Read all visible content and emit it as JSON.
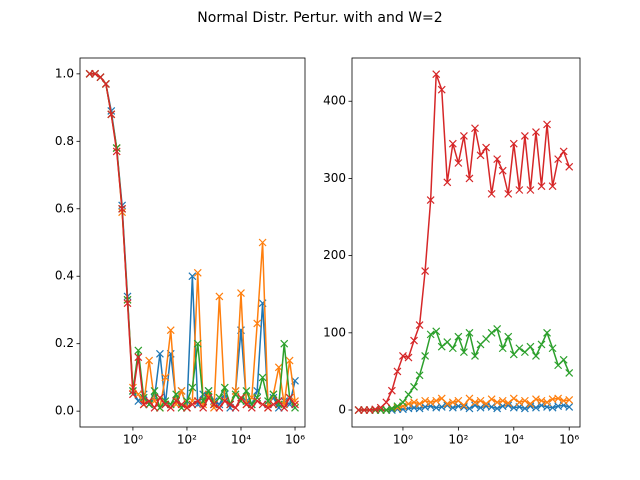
{
  "title": "Normal Distr. Pertur. with and W=2",
  "chart_data": [
    {
      "type": "line",
      "log_x": true,
      "marker": "x",
      "x": [
        0.0251,
        0.0398,
        0.0631,
        0.1,
        0.158,
        0.251,
        0.398,
        0.631,
        1,
        1.585,
        2.512,
        3.981,
        6.31,
        10,
        15.85,
        25.12,
        39.81,
        63.1,
        100,
        158.5,
        251.2,
        398.1,
        631,
        1000,
        1585,
        2512,
        3981,
        6310,
        10000,
        15850,
        25120,
        39810,
        63100,
        100000,
        158500,
        251200,
        398100,
        631000,
        1000000
      ],
      "xlim": [
        0.011,
        2340000
      ],
      "ylim": [
        -0.047,
        1.047
      ],
      "xticks": [
        {
          "value": 1,
          "label": "10⁰"
        },
        {
          "value": 100,
          "label": "10²"
        },
        {
          "value": 10000,
          "label": "10⁴"
        },
        {
          "value": 1000000,
          "label": "10⁶"
        }
      ],
      "yticks": [
        {
          "value": 0,
          "label": "0.0"
        },
        {
          "value": 0.2,
          "label": "0.2"
        },
        {
          "value": 0.4,
          "label": "0.4"
        },
        {
          "value": 0.6,
          "label": "0.6"
        },
        {
          "value": 0.8,
          "label": "0.8"
        },
        {
          "value": 1,
          "label": "1.0"
        }
      ],
      "series": [
        {
          "color": "#1f77b4",
          "values": [
            1.0,
            1.0,
            0.99,
            0.97,
            0.89,
            0.78,
            0.61,
            0.34,
            0.06,
            0.03,
            0.05,
            0.02,
            0.04,
            0.17,
            0.02,
            0.17,
            0.03,
            0.06,
            0.01,
            0.4,
            0.02,
            0.05,
            0.06,
            0.03,
            0.02,
            0.05,
            0.01,
            0.06,
            0.24,
            0.03,
            0.02,
            0.06,
            0.32,
            0.02,
            0.04,
            0.01,
            0.03,
            0.02,
            0.09
          ]
        },
        {
          "color": "#ff7f0e",
          "values": [
            1.0,
            1.0,
            0.99,
            0.97,
            0.88,
            0.78,
            0.59,
            0.33,
            0.07,
            0.05,
            0.02,
            0.15,
            0.03,
            0.01,
            0.1,
            0.24,
            0.02,
            0.06,
            0.01,
            0.03,
            0.41,
            0.02,
            0.05,
            0.01,
            0.34,
            0.03,
            0.02,
            0.06,
            0.35,
            0.02,
            0.04,
            0.26,
            0.5,
            0.01,
            0.05,
            0.13,
            0.02,
            0.15,
            0.03
          ]
        },
        {
          "color": "#2ca02c",
          "values": [
            1.0,
            1.0,
            0.99,
            0.97,
            0.88,
            0.78,
            0.6,
            0.33,
            0.06,
            0.18,
            0.04,
            0.02,
            0.06,
            0.01,
            0.03,
            0.02,
            0.05,
            0.01,
            0.03,
            0.07,
            0.2,
            0.03,
            0.06,
            0.02,
            0.04,
            0.07,
            0.02,
            0.05,
            0.03,
            0.06,
            0.02,
            0.04,
            0.1,
            0.03,
            0.05,
            0.02,
            0.2,
            0.04,
            0.01
          ]
        },
        {
          "color": "#d62728",
          "values": [
            1.0,
            1.0,
            0.99,
            0.97,
            0.88,
            0.77,
            0.6,
            0.32,
            0.05,
            0.16,
            0.02,
            0.03,
            0.01,
            0.04,
            0.02,
            0.01,
            0.03,
            0.02,
            0.01,
            0.02,
            0.03,
            0.01,
            0.04,
            0.02,
            0.01,
            0.03,
            0.02,
            0.01,
            0.04,
            0.02,
            0.01,
            0.03,
            0.02,
            0.01,
            0.02,
            0.03,
            0.01,
            0.04,
            0.02
          ]
        }
      ]
    },
    {
      "type": "line",
      "log_x": true,
      "marker": "x",
      "x": [
        0.0251,
        0.0398,
        0.0631,
        0.1,
        0.158,
        0.251,
        0.398,
        0.631,
        1,
        1.585,
        2.512,
        3.981,
        6.31,
        10,
        15.85,
        25.12,
        39.81,
        63.1,
        100,
        158.5,
        251.2,
        398.1,
        631,
        1000,
        1585,
        2512,
        3981,
        6310,
        10000,
        15850,
        25120,
        39810,
        63100,
        100000,
        158500,
        251200,
        398100,
        631000,
        1000000
      ],
      "xlim": [
        0.0145,
        2450000
      ],
      "ylim": [
        -22,
        456
      ],
      "xticks": [
        {
          "value": 1,
          "label": "10⁰"
        },
        {
          "value": 100,
          "label": "10²"
        },
        {
          "value": 10000,
          "label": "10⁴"
        },
        {
          "value": 1000000,
          "label": "10⁶"
        }
      ],
      "yticks": [
        0,
        100,
        200,
        300,
        400
      ],
      "series": [
        {
          "color": "#1f77b4",
          "values": [
            0,
            0,
            0,
            0,
            0,
            0,
            0,
            1,
            1,
            2,
            3,
            2,
            4,
            5,
            3,
            4,
            6,
            3,
            5,
            4,
            2,
            6,
            3,
            5,
            4,
            2,
            5,
            6,
            3,
            4,
            2,
            5,
            3,
            6,
            4,
            3,
            5,
            6,
            4
          ]
        },
        {
          "color": "#ff7f0e",
          "values": [
            0,
            0,
            0,
            0,
            0,
            0,
            2,
            3,
            5,
            8,
            10,
            8,
            12,
            10,
            12,
            15,
            8,
            10,
            12,
            6,
            15,
            10,
            12,
            8,
            14,
            10,
            12,
            9,
            15,
            10,
            12,
            8,
            14,
            12,
            10,
            14,
            15,
            12,
            13
          ]
        },
        {
          "color": "#2ca02c",
          "values": [
            0,
            0,
            0,
            0,
            0,
            0,
            2,
            5,
            10,
            20,
            30,
            45,
            70,
            98,
            102,
            82,
            88,
            80,
            95,
            75,
            100,
            70,
            85,
            92,
            100,
            105,
            80,
            95,
            72,
            80,
            75,
            82,
            70,
            85,
            100,
            80,
            58,
            65,
            48
          ]
        },
        {
          "color": "#d62728",
          "values": [
            0,
            0,
            0,
            1,
            3,
            10,
            25,
            50,
            70,
            68,
            90,
            110,
            180,
            272,
            435,
            415,
            295,
            345,
            320,
            355,
            300,
            365,
            330,
            340,
            280,
            325,
            310,
            280,
            345,
            285,
            355,
            285,
            360,
            290,
            370,
            290,
            325,
            335,
            315
          ]
        }
      ]
    }
  ]
}
